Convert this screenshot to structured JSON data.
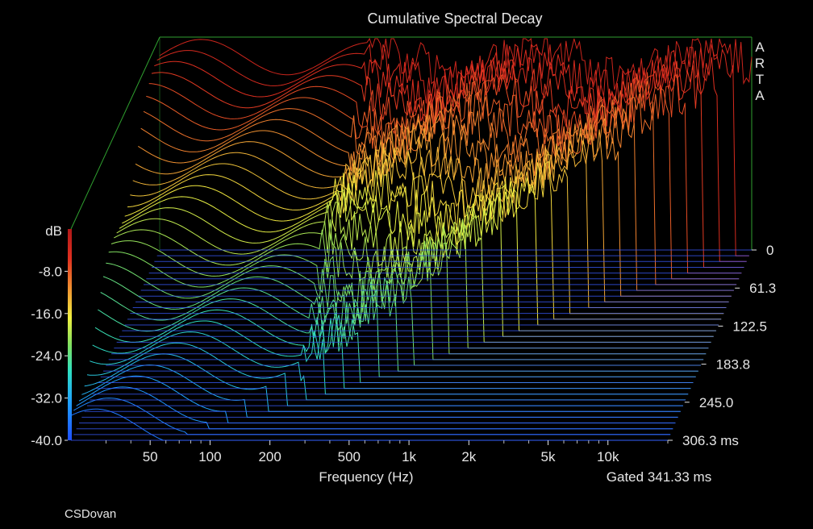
{
  "chart_data": {
    "type": "waterfall",
    "title": "Cumulative Spectral Decay",
    "xlabel": "Frequency (Hz)",
    "x_scale": "log",
    "x_ticks": [
      "50",
      "100",
      "200",
      "500",
      "1k",
      "2k",
      "5k",
      "10k"
    ],
    "x_tick_values": [
      50,
      100,
      200,
      500,
      1000,
      2000,
      5000,
      10000
    ],
    "z_label": "dB",
    "z_ticks": [
      "-8.0",
      "-16.0",
      "-24.0",
      "-32.0",
      "-40.0"
    ],
    "z_range": [
      -40,
      0
    ],
    "time_ticks": [
      "0",
      "61.3",
      "122.5",
      "183.8",
      "245.0",
      "306.3 ms"
    ],
    "time_range_ms": [
      0,
      306.3
    ],
    "gated_label": "Gated 341.33 ms",
    "brand_letters": [
      "A",
      "R",
      "T",
      "A"
    ],
    "credit": "CSDovan",
    "colors": {
      "background": "#000000",
      "frame": "#2fa02f",
      "text": "#e6e6e6",
      "colorbar": [
        "#1f4fff",
        "#1fa0ff",
        "#2fe0c0",
        "#7fe060",
        "#f0f040",
        "#f09030",
        "#e03020",
        "#b01818"
      ]
    }
  }
}
